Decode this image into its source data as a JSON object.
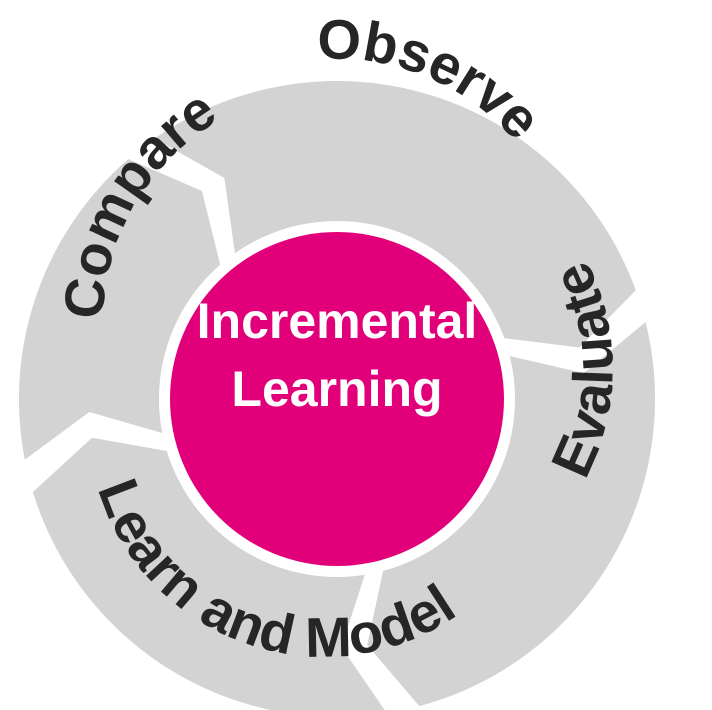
{
  "diagram": {
    "center": {
      "lines": [
        "Incremental",
        "Learning"
      ],
      "color": "#e2007a",
      "text_color": "#ffffff"
    },
    "segment_color": "#d3d3d3",
    "label_color": "#262626",
    "segments": [
      {
        "label": "Observe"
      },
      {
        "label": "Evaluate"
      },
      {
        "label": "Learn and Model"
      },
      {
        "label": "Compare"
      }
    ]
  }
}
